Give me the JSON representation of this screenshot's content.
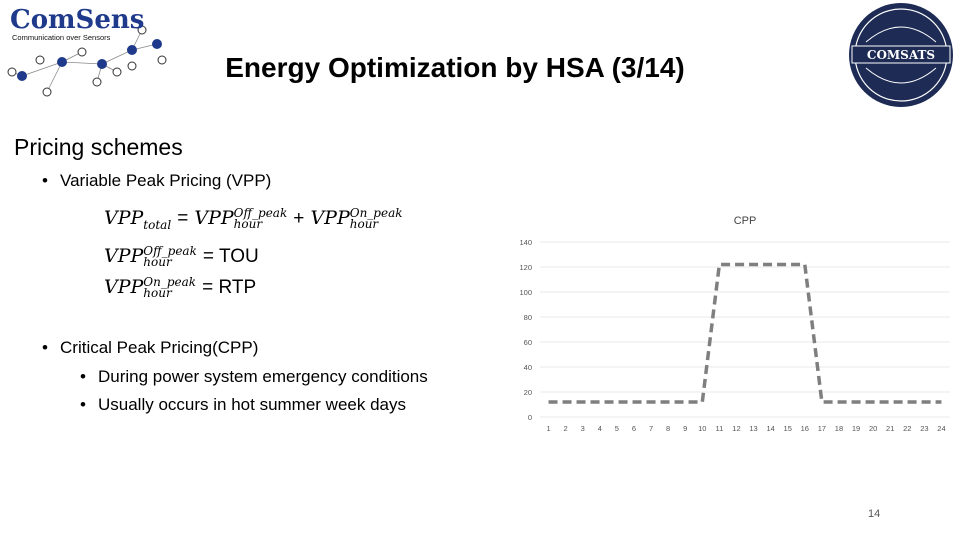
{
  "logo_left": {
    "brand": "ComSens",
    "tagline": "Communication over Sensors"
  },
  "logo_right": {
    "brand": "COMSATS"
  },
  "slide": {
    "title": "Energy Optimization by HSA (3/14)",
    "section": "Pricing schemes",
    "bullet_vpp": "Variable Peak Pricing (VPP)",
    "bullet_cpp": "Critical Peak Pricing(CPP)",
    "sub_bullet_1": "During power system emergency conditions",
    "sub_bullet_2": "Usually occurs in hot summer week days",
    "page_number": "14"
  },
  "formulas": {
    "f1": {
      "lhs": "VPP",
      "lhs_sub": "total",
      "eq": "=",
      "t1": "VPP",
      "t1_sup": "Off_peak",
      "t1_sub": "hour",
      "plus": "+",
      "t2": "VPP",
      "t2_sup": "On_peak",
      "t2_sub": "hour"
    },
    "f2": {
      "lhs": "VPP",
      "lhs_sup": "Off_peak",
      "lhs_sub": "hour",
      "rhs": "= TOU"
    },
    "f3": {
      "lhs": "VPP",
      "lhs_sup": "On_peak",
      "lhs_sub": "hour",
      "rhs": "= RTP"
    }
  },
  "chart_data": {
    "type": "line",
    "title": "CPP",
    "xlabel": "",
    "ylabel": "",
    "ylim": [
      0,
      140
    ],
    "yticks": [
      0,
      20,
      40,
      60,
      80,
      100,
      120,
      140
    ],
    "grid": true,
    "categories": [
      "1",
      "2",
      "3",
      "4",
      "5",
      "6",
      "7",
      "8",
      "9",
      "10",
      "11",
      "12",
      "13",
      "14",
      "15",
      "16",
      "17",
      "18",
      "19",
      "20",
      "21",
      "22",
      "23",
      "24"
    ],
    "series": [
      {
        "values": [
          12,
          12,
          12,
          12,
          12,
          12,
          12,
          12,
          12,
          12,
          122,
          122,
          122,
          122,
          122,
          122,
          12,
          12,
          12,
          12,
          12,
          12,
          12,
          12
        ],
        "color": "#7f7f7f",
        "style": "dashed"
      }
    ]
  }
}
